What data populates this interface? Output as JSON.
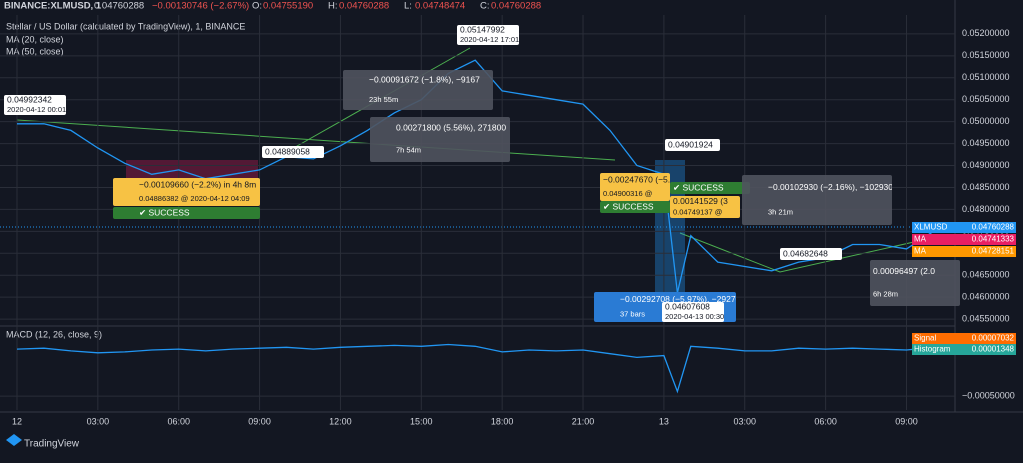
{
  "header": {
    "symbol": "BINANCE:XLMUSD, 1",
    "last": "0.04760288",
    "change": "−0.00130746 (−2.67%)",
    "ohlc": [
      [
        "O:",
        "0.04755190"
      ],
      [
        "H:",
        "0.04760288"
      ],
      [
        "L:",
        "0.04748474"
      ],
      [
        "C:",
        "0.04760288"
      ]
    ]
  },
  "legend": [
    "MA (20, close)",
    "MA (50, close)"
  ],
  "footer": "TradingView",
  "chart_data": [
    {
      "type": "line",
      "title": "Stellar / US Dollar (calculated by TradingView), 1, BINANCE",
      "x": [
        0,
        1,
        2,
        3,
        4,
        5,
        6,
        7,
        8,
        9,
        10,
        11,
        12,
        13,
        14,
        15,
        16,
        17,
        18,
        19,
        20,
        21,
        22,
        23,
        24,
        24.5,
        25,
        26,
        27,
        28,
        29,
        30,
        31,
        32,
        33,
        34,
        34.6
      ],
      "series": [
        {
          "name": "XLMUSD",
          "color": "#2196f3",
          "values": [
            0.04995,
            0.04995,
            0.0498,
            0.0494,
            0.04905,
            0.0488,
            0.0489,
            0.0487,
            0.0488,
            0.0489,
            0.0492,
            0.04915,
            0.04945,
            0.0498,
            0.0502,
            0.0505,
            0.0511,
            0.0514,
            0.0507,
            0.0506,
            0.0505,
            0.0504,
            0.0498,
            0.049,
            0.0488,
            0.0461,
            0.0474,
            0.0468,
            0.0467,
            0.0466,
            0.0468,
            0.0469,
            0.0472,
            0.0472,
            0.0471,
            0.0475,
            0.0476
          ]
        }
      ],
      "xlim": [
        -0.63,
        34.8
      ],
      "xticks": [
        {
          "value": 0,
          "label": "12"
        },
        {
          "value": 3,
          "label": "03:00"
        },
        {
          "value": 6,
          "label": "06:00"
        },
        {
          "value": 9,
          "label": "09:00"
        },
        {
          "value": 12,
          "label": "12:00"
        },
        {
          "value": 15,
          "label": "15:00"
        },
        {
          "value": 18,
          "label": "18:00"
        },
        {
          "value": 21,
          "label": "21:00"
        },
        {
          "value": 24,
          "label": "13"
        },
        {
          "value": 27,
          "label": "03:00"
        },
        {
          "value": 30,
          "label": "06:00"
        },
        {
          "value": 33,
          "label": "09:00"
        }
      ],
      "ylim": [
        0.04548,
        0.05243
      ],
      "yticks": [
        {
          "value": 0.052,
          "label": "0.05200000"
        },
        {
          "value": 0.0515,
          "label": "0.05150000"
        },
        {
          "value": 0.051,
          "label": "0.05100000"
        },
        {
          "value": 0.0505,
          "label": "0.05050000"
        },
        {
          "value": 0.05,
          "label": "0.05000000"
        },
        {
          "value": 0.0495,
          "label": "0.04950000"
        },
        {
          "value": 0.049,
          "label": "0.04900000"
        },
        {
          "value": 0.0485,
          "label": "0.04850000"
        },
        {
          "value": 0.048,
          "label": "0.04800000"
        },
        {
          "value": 0.0475,
          "label": "0.04750000"
        },
        {
          "value": 0.047,
          "label": "0.04700000"
        },
        {
          "value": 0.0465,
          "label": "0.04650000"
        },
        {
          "value": 0.046,
          "label": "0.04600000"
        },
        {
          "value": 0.0455,
          "label": "0.04550000"
        }
      ],
      "grid": true
    },
    {
      "type": "line",
      "title": "MACD (12, 26, close, 9)",
      "x": [
        0,
        1,
        2,
        3,
        4,
        5,
        6,
        7,
        8,
        9,
        10,
        11,
        12,
        13,
        14,
        15,
        16,
        17,
        18,
        19,
        20,
        21,
        22,
        23,
        24,
        24.5,
        25,
        26,
        27,
        28,
        29,
        30,
        31,
        32,
        33,
        34,
        34.6
      ],
      "series": [
        {
          "name": "MACD",
          "color": "#2196f3",
          "values": [
            1e-05,
            2e-05,
            -1e-05,
            -3e-05,
            -2e-05,
            0,
            1e-05,
            -1e-05,
            1e-05,
            2e-05,
            3e-05,
            1e-05,
            3e-05,
            4e-05,
            5e-05,
            4e-05,
            6e-05,
            4e-05,
            -2e-05,
            0,
            -1e-05,
            0,
            -4e-05,
            -8e-05,
            -6e-05,
            -0.00045,
            4e-05,
            2e-05,
            -1e-05,
            -1e-05,
            2e-05,
            1e-05,
            2e-05,
            1e-05,
            0,
            3e-05,
            2e-05
          ]
        }
      ],
      "xlim": [
        -0.63,
        34.8
      ],
      "ylim": [
        -0.00065,
        0.000217
      ],
      "yticks": [
        {
          "value": -0.0005,
          "label": "−0.00050000"
        }
      ],
      "grid": true
    }
  ],
  "right_labels": [
    {
      "name": "XLMUSD",
      "value": "0.04760288"
    },
    {
      "name": "MA",
      "value": "0.04741333"
    },
    {
      "name": "MA",
      "value": "0.04728151"
    },
    {
      "name": "Signal",
      "value": "0.00007032"
    },
    {
      "name": "Histogram",
      "value": "0.00001348"
    }
  ],
  "annotations": [
    {
      "lines": [
        "0.04992342",
        "2020-04-12 00:01"
      ]
    },
    {
      "lines": [
        "0.05147992",
        "2020-04-12 17:01"
      ]
    },
    {
      "lines": [
        "−0.00091672 (−1.8%), −9167",
        "23h 55m"
      ]
    },
    {
      "lines": [
        "0.00271800 (5.56%), 271800",
        "7h 54m"
      ]
    },
    {
      "lines": [
        "0.04889058"
      ]
    },
    {
      "lines": [
        "−0.00109660 (−2.2%) in 4h 8m",
        "0.04886382 @ 2020-04-12 04:09"
      ]
    },
    {
      "lines": [
        "✔ SUCCESS"
      ]
    },
    {
      "lines": [
        "0.04901924"
      ]
    },
    {
      "lines": [
        "−0.00247670 (−5.1%) in 5h 3m",
        "0.04900316 @"
      ]
    },
    {
      "lines": [
        "✔ SUCCESS"
      ]
    },
    {
      "lines": [
        "✔ SUCCESS"
      ]
    },
    {
      "lines": [
        "−0.00102930 (−2.16%), −102930",
        "3h 21m"
      ]
    },
    {
      "lines": [
        "0.00141529 (3",
        "0.04749137 @"
      ]
    },
    {
      "lines": [
        "−0.00292708 (−5.97%), −292708",
        "37 bars"
      ]
    },
    {
      "lines": [
        "0.04607608",
        "2020-04-13 00:30"
      ]
    },
    {
      "lines": [
        "0.04682648"
      ]
    },
    {
      "lines": [
        "0.00096497 (2.0",
        "6h 28m"
      ]
    }
  ]
}
